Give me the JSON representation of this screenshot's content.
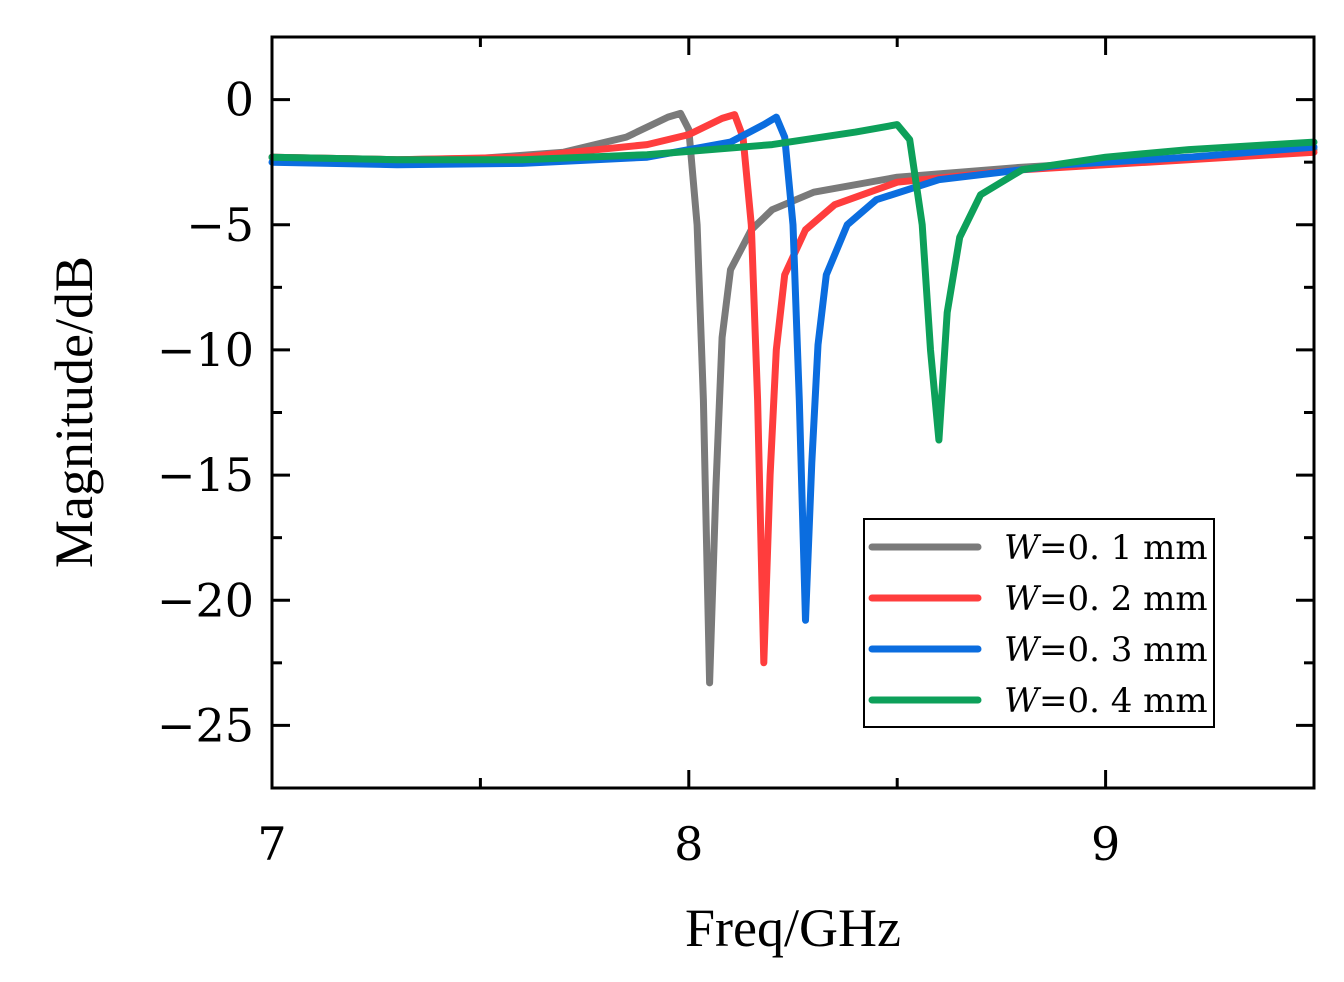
{
  "chart_data": {
    "type": "line",
    "title": "",
    "xlabel": "Freq/GHz",
    "ylabel": "Magnitude/dB",
    "xlim": [
      7,
      9.5
    ],
    "ylim": [
      -27.5,
      2.5
    ],
    "xticks": [
      7,
      8,
      9
    ],
    "xtick_labels": [
      "7",
      "8",
      "9"
    ],
    "yticks": [
      0,
      -5,
      -10,
      -15,
      -20,
      -25
    ],
    "ytick_labels": [
      "0",
      "−5",
      "−10",
      "−15",
      "−20",
      "−25"
    ],
    "grid": false,
    "legend_position": "lower-right",
    "series": [
      {
        "name": "W=0.1 mm",
        "var": "W",
        "label": "=0. 1  mm",
        "color": "#7a7a7a",
        "x": [
          7.0,
          7.3,
          7.5,
          7.7,
          7.85,
          7.95,
          7.98,
          8.0,
          8.02,
          8.035,
          8.05,
          8.065,
          8.08,
          8.1,
          8.15,
          8.2,
          8.3,
          8.5,
          8.8,
          9.1,
          9.5
        ],
        "y": [
          -2.3,
          -2.4,
          -2.35,
          -2.1,
          -1.5,
          -0.7,
          -0.55,
          -1.2,
          -5.0,
          -12.0,
          -23.3,
          -15.5,
          -9.5,
          -6.8,
          -5.2,
          -4.4,
          -3.7,
          -3.1,
          -2.7,
          -2.4,
          -2.0
        ]
      },
      {
        "name": "W=0.2 mm",
        "var": "W",
        "label": "=0. 2  mm",
        "color": "#ff3d3d",
        "x": [
          7.0,
          7.3,
          7.6,
          7.9,
          8.0,
          8.08,
          8.11,
          8.13,
          8.15,
          8.165,
          8.18,
          8.195,
          8.21,
          8.23,
          8.28,
          8.35,
          8.5,
          8.8,
          9.1,
          9.5
        ],
        "y": [
          -2.3,
          -2.4,
          -2.3,
          -1.8,
          -1.4,
          -0.75,
          -0.6,
          -1.5,
          -5.0,
          -12.0,
          -22.5,
          -15.0,
          -10.0,
          -7.0,
          -5.2,
          -4.2,
          -3.3,
          -2.8,
          -2.5,
          -2.1
        ]
      },
      {
        "name": "W=0.3 mm",
        "var": "W",
        "label": "=0. 3  mm",
        "color": "#0b6ddf",
        "x": [
          7.0,
          7.3,
          7.6,
          7.9,
          8.1,
          8.18,
          8.21,
          8.23,
          8.25,
          8.265,
          8.28,
          8.295,
          8.31,
          8.33,
          8.38,
          8.45,
          8.6,
          8.9,
          9.2,
          9.5
        ],
        "y": [
          -2.5,
          -2.6,
          -2.55,
          -2.3,
          -1.7,
          -1.0,
          -0.7,
          -1.5,
          -5.0,
          -12.0,
          -20.8,
          -14.5,
          -9.8,
          -7.0,
          -5.0,
          -4.0,
          -3.2,
          -2.6,
          -2.3,
          -1.9
        ]
      },
      {
        "name": "W=0.4 mm",
        "var": "W",
        "label": "=0. 4  mm",
        "color": "#0da05a",
        "x": [
          7.0,
          7.3,
          7.6,
          7.9,
          8.2,
          8.4,
          8.5,
          8.53,
          8.56,
          8.58,
          8.6,
          8.62,
          8.65,
          8.7,
          8.8,
          9.0,
          9.2,
          9.5
        ],
        "y": [
          -2.3,
          -2.4,
          -2.4,
          -2.2,
          -1.8,
          -1.3,
          -1.0,
          -1.6,
          -5.0,
          -10.0,
          -13.6,
          -8.5,
          -5.5,
          -3.8,
          -2.8,
          -2.3,
          -2.0,
          -1.7
        ]
      }
    ]
  }
}
